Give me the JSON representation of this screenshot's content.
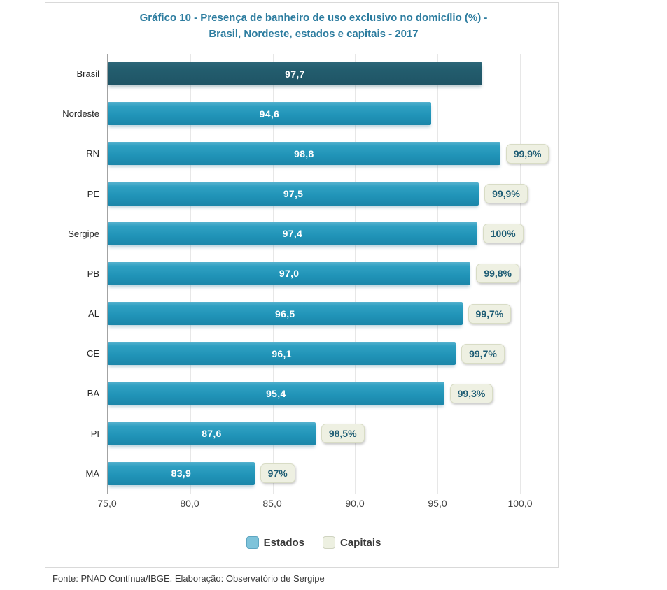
{
  "chart_data": {
    "type": "bar",
    "orientation": "horizontal",
    "title": "Gráfico 10 - Presença de banheiro de uso exclusivo no domicílio (%) - Brasil, Nordeste, estados e capitais - 2017",
    "title_lines": [
      "Gráfico 10 - Presença de banheiro de uso exclusivo no domicílio (%) -",
      "Brasil, Nordeste, estados e capitais - 2017"
    ],
    "categories": [
      "Brasil",
      "Nordeste",
      "RN",
      "PE",
      "Sergipe",
      "PB",
      "AL",
      "CE",
      "BA",
      "PI",
      "MA"
    ],
    "series": [
      {
        "name": "Estados",
        "values": [
          97.7,
          94.6,
          98.8,
          97.5,
          97.4,
          97.0,
          96.5,
          96.1,
          95.4,
          87.6,
          83.9
        ],
        "display_labels": [
          "97,7",
          "94,6",
          "98,8",
          "97,5",
          "97,4",
          "97,0",
          "96,5",
          "96,1",
          "95,4",
          "87,6",
          "83,9"
        ]
      },
      {
        "name": "Capitais",
        "values": [
          null,
          null,
          99.9,
          99.9,
          100,
          99.8,
          99.7,
          99.7,
          99.3,
          98.5,
          97
        ],
        "display_labels": [
          null,
          null,
          "99,9%",
          "99,9%",
          "100%",
          "99,8%",
          "99,7%",
          "99,7%",
          "99,3%",
          "98,5%",
          "97%"
        ]
      }
    ],
    "xlim": [
      75,
      100
    ],
    "x_tick_labels": [
      "75,0",
      "80,0",
      "85,0",
      "90,0",
      "95,0",
      "100,0"
    ],
    "grid": true,
    "legend_position": "bottom",
    "highlight_category_index": 0
  },
  "legend": {
    "estados_label": "Estados",
    "capitais_label": "Capitais"
  },
  "footer": {
    "source": "Fonte: PNAD Contínua/IBGE. Elaboração: Observatório de Sergipe"
  },
  "colors": {
    "title_text": "#2c7c9f",
    "estados_bar": "#2093b7",
    "brasil_bar": "#235d6e",
    "bar_value_text": "#ffffff",
    "capital_badge_bg": "#eef0e2",
    "capital_badge_border": "#d8dcc5",
    "capital_badge_text": "#1d5c74",
    "legend_estados_swatch": "#7ec3da",
    "legend_capitais_swatch": "#edf0e1",
    "gridline": "#e7e7e7",
    "axis_line": "#a3a3a3"
  }
}
